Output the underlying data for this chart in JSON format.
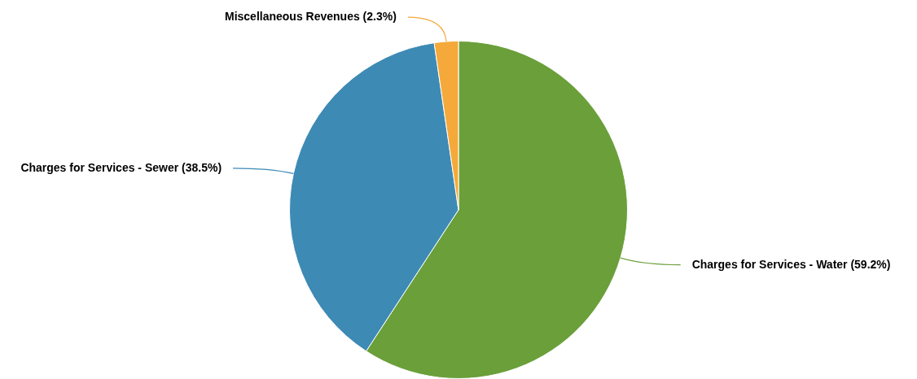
{
  "chart_data": {
    "type": "pie",
    "categories": [
      "Charges for Services - Water",
      "Charges for Services - Sewer",
      "Miscellaneous Revenues"
    ],
    "values": [
      59.2,
      38.5,
      2.3
    ],
    "colors": [
      "#6a9f3a",
      "#3d8ab5",
      "#f5a93a"
    ],
    "value_labels": [
      "(59.2%)",
      "(38.5%)",
      "(2.3%)"
    ],
    "legend": false
  }
}
